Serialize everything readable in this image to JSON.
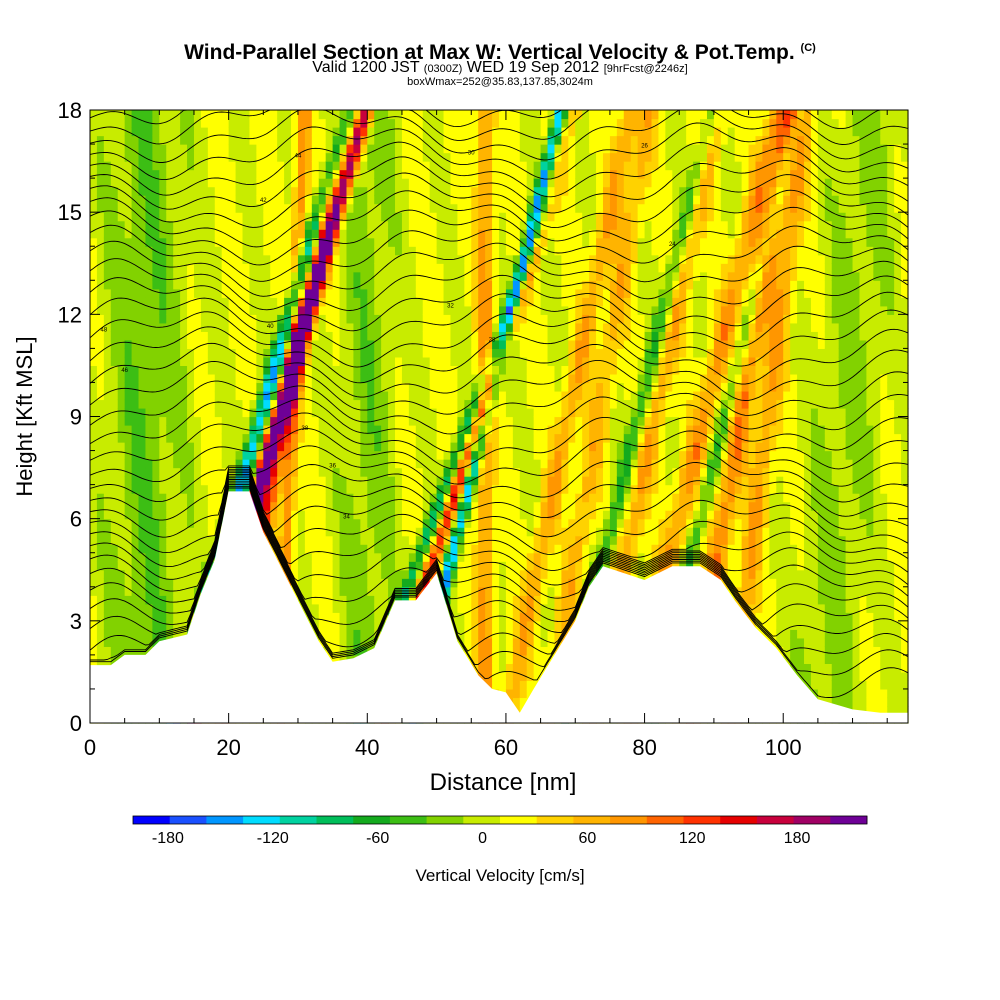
{
  "title": {
    "main": "Wind-Parallel Section at Max W: Vertical Velocity & Pot.Temp.",
    "copyright": "(C)",
    "valid": "Valid 1200 JST",
    "valid_utc": "(0300Z)",
    "date": "WED 19 Sep 2012",
    "forecast": "[9hrFcst@2246z]",
    "box": "boxWmax=252@35.83,137.85,3024m"
  },
  "chart_data": {
    "type": "heatmap",
    "xlabel": "Distance [nm]",
    "ylabel": "Height [Kft MSL]",
    "xlim": [
      0,
      118
    ],
    "ylim": [
      0,
      18
    ],
    "x_ticks": [
      0,
      20,
      40,
      60,
      80,
      100
    ],
    "x_tick_labels": [
      "0",
      "20",
      "40",
      "60",
      "80",
      "100"
    ],
    "y_ticks": [
      0,
      3,
      6,
      9,
      12,
      15,
      18
    ],
    "y_tick_labels": [
      "0",
      "3",
      "6",
      "9",
      "12",
      "15",
      "18"
    ],
    "terrain_kft": [
      [
        0,
        1.7
      ],
      [
        3,
        1.7
      ],
      [
        5,
        2.0
      ],
      [
        8,
        2.0
      ],
      [
        10,
        2.4
      ],
      [
        14,
        2.6
      ],
      [
        16,
        3.8
      ],
      [
        18,
        4.8
      ],
      [
        20,
        6.8
      ],
      [
        23,
        6.8
      ],
      [
        25,
        5.6
      ],
      [
        27,
        4.8
      ],
      [
        30,
        3.6
      ],
      [
        33,
        2.4
      ],
      [
        35,
        1.8
      ],
      [
        38,
        1.9
      ],
      [
        41,
        2.2
      ],
      [
        44,
        3.6
      ],
      [
        47,
        3.6
      ],
      [
        50,
        4.4
      ],
      [
        53,
        2.4
      ],
      [
        56,
        1.4
      ],
      [
        58,
        1.0
      ],
      [
        60,
        0.9
      ],
      [
        62,
        0.3
      ],
      [
        64,
        1.0
      ],
      [
        67,
        2.0
      ],
      [
        70,
        3.0
      ],
      [
        72,
        4.0
      ],
      [
        74,
        4.6
      ],
      [
        80,
        4.2
      ],
      [
        84,
        4.6
      ],
      [
        88,
        4.6
      ],
      [
        91,
        4.2
      ],
      [
        93,
        3.6
      ],
      [
        96,
        2.8
      ],
      [
        99,
        2.2
      ],
      [
        102,
        1.4
      ],
      [
        105,
        0.7
      ],
      [
        110,
        0.4
      ],
      [
        114,
        0.3
      ],
      [
        118,
        0.3
      ]
    ],
    "contour_labels": [
      "48",
      "46",
      "44",
      "42",
      "40",
      "38",
      "36",
      "34",
      "32",
      "30",
      "28",
      "26",
      "24"
    ],
    "colorbar": {
      "label": "Vertical Velocity [cm/s]",
      "tick_labels": [
        "-180",
        "-120",
        "-60",
        "0",
        "60",
        "120",
        "180"
      ],
      "tick_values": [
        -180,
        -120,
        -60,
        0,
        60,
        120,
        180
      ],
      "range": [
        -200,
        220
      ],
      "colors": [
        "#0000ff",
        "#1a50ff",
        "#0096ff",
        "#00dcff",
        "#00d2a0",
        "#00be5a",
        "#14aa1e",
        "#3cbe14",
        "#82d200",
        "#c8ec00",
        "#ffff00",
        "#ffd200",
        "#ffb400",
        "#ff9600",
        "#ff6400",
        "#ff3200",
        "#e60000",
        "#c8003c",
        "#a00064",
        "#6e0096"
      ]
    }
  }
}
